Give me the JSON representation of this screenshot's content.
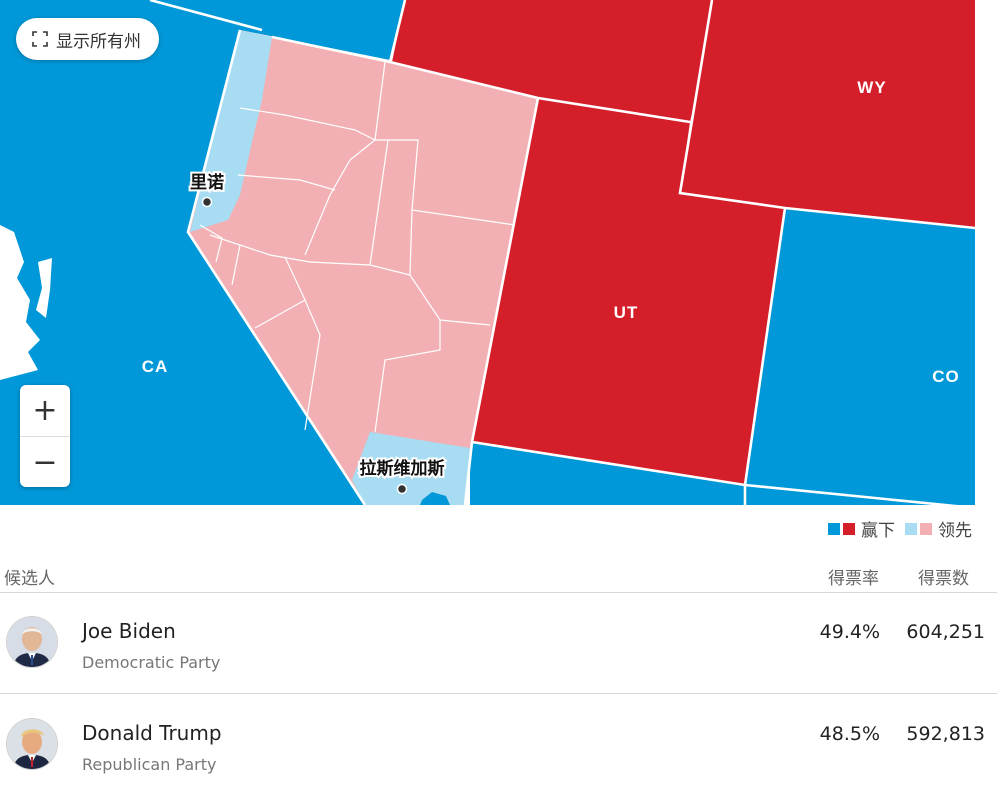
{
  "controls": {
    "show_all_label": "显示所有州",
    "zoom_in": "+",
    "zoom_out": "−"
  },
  "map": {
    "states": {
      "ca": {
        "label": "CA",
        "color": "#0098d8"
      },
      "ut": {
        "label": "UT",
        "color": "#d41f2b"
      },
      "wy": {
        "label": "WY",
        "color": "#d41f2b"
      },
      "co": {
        "label": "CO",
        "color": "#0098d8"
      },
      "nv": {
        "label": "",
        "color": "#f2b0b4"
      }
    },
    "cities": {
      "reno": "里诺",
      "las_vegas": "拉斯维加斯"
    },
    "colors": {
      "dem_win": "#0098d8",
      "rep_win": "#d41f2b",
      "dem_lead": "#a8dcf2",
      "rep_lead": "#f2b0b4"
    }
  },
  "legend": {
    "win_label": "赢下",
    "lead_label": "领先"
  },
  "table": {
    "headers": {
      "candidate": "候选人",
      "vote_pct": "得票率",
      "votes": "得票数"
    },
    "candidates": [
      {
        "name": "Joe Biden",
        "party": "Democratic Party",
        "pct": "49.4%",
        "votes": "604,251"
      },
      {
        "name": "Donald Trump",
        "party": "Republican Party",
        "pct": "48.5%",
        "votes": "592,813"
      }
    ]
  }
}
